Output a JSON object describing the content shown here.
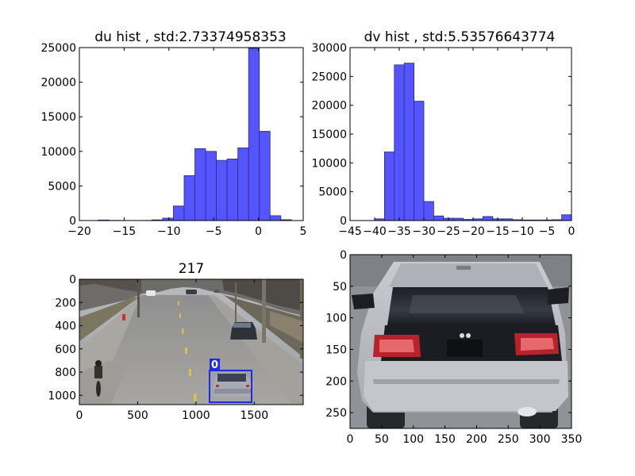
{
  "chart_data": [
    {
      "type": "bar",
      "title": "du hist , std:2.73374958353",
      "xlim": [
        -20,
        5
      ],
      "ylim": [
        0,
        25000
      ],
      "xticks": [
        "−20",
        "−15",
        "−10",
        "−5",
        "0",
        "5"
      ],
      "yticks": [
        "0",
        "5000",
        "10000",
        "15000",
        "20000",
        "25000"
      ],
      "bins": [
        {
          "x0": -19.1,
          "x1": -17.9,
          "value": 0
        },
        {
          "x0": -17.9,
          "x1": -16.7,
          "value": 80
        },
        {
          "x0": -16.7,
          "x1": -15.5,
          "value": 30
        },
        {
          "x0": -15.5,
          "x1": -14.3,
          "value": 20
        },
        {
          "x0": -14.3,
          "x1": -13.1,
          "value": 10
        },
        {
          "x0": -13.1,
          "x1": -11.9,
          "value": 20
        },
        {
          "x0": -11.9,
          "x1": -10.7,
          "value": 100
        },
        {
          "x0": -10.7,
          "x1": -9.5,
          "value": 350
        },
        {
          "x0": -9.5,
          "x1": -8.3,
          "value": 2100
        },
        {
          "x0": -8.3,
          "x1": -7.1,
          "value": 6500
        },
        {
          "x0": -7.1,
          "x1": -5.9,
          "value": 10400
        },
        {
          "x0": -5.9,
          "x1": -4.7,
          "value": 10000
        },
        {
          "x0": -4.7,
          "x1": -3.5,
          "value": 8700
        },
        {
          "x0": -3.5,
          "x1": -2.3,
          "value": 8900
        },
        {
          "x0": -2.3,
          "x1": -1.1,
          "value": 10500
        },
        {
          "x0": -1.1,
          "x1": 0.1,
          "value": 24900
        },
        {
          "x0": 0.1,
          "x1": 1.3,
          "value": 12900
        },
        {
          "x0": 1.3,
          "x1": 2.5,
          "value": 700
        },
        {
          "x0": 2.5,
          "x1": 3.7,
          "value": 120
        }
      ]
    },
    {
      "type": "bar",
      "title": "dv hist , std:5.53576643774",
      "xlim": [
        -45,
        0
      ],
      "ylim": [
        0,
        30000
      ],
      "xticks": [
        "−45",
        "−40",
        "−35",
        "−30",
        "−25",
        "−20",
        "−15",
        "−10",
        "−5",
        "0"
      ],
      "yticks": [
        "0",
        "5000",
        "10000",
        "15000",
        "20000",
        "25000",
        "30000"
      ],
      "bins": [
        {
          "x0": -40.0,
          "x1": -38.0,
          "value": 300
        },
        {
          "x0": -38.0,
          "x1": -36.0,
          "value": 11900
        },
        {
          "x0": -36.0,
          "x1": -34.0,
          "value": 27000
        },
        {
          "x0": -34.0,
          "x1": -32.0,
          "value": 27300
        },
        {
          "x0": -32.0,
          "x1": -30.0,
          "value": 20700
        },
        {
          "x0": -30.0,
          "x1": -28.0,
          "value": 3300
        },
        {
          "x0": -28.0,
          "x1": -26.0,
          "value": 800
        },
        {
          "x0": -26.0,
          "x1": -24.0,
          "value": 400
        },
        {
          "x0": -24.0,
          "x1": -22.0,
          "value": 400
        },
        {
          "x0": -22.0,
          "x1": -20.0,
          "value": 200
        },
        {
          "x0": -20.0,
          "x1": -18.0,
          "value": 300
        },
        {
          "x0": -18.0,
          "x1": -16.0,
          "value": 700
        },
        {
          "x0": -16.0,
          "x1": -14.0,
          "value": 300
        },
        {
          "x0": -14.0,
          "x1": -12.0,
          "value": 300
        },
        {
          "x0": -12.0,
          "x1": -10.0,
          "value": 150
        },
        {
          "x0": -10.0,
          "x1": -8.0,
          "value": 100
        },
        {
          "x0": -8.0,
          "x1": -6.0,
          "value": 100
        },
        {
          "x0": -6.0,
          "x1": -4.0,
          "value": 100
        },
        {
          "x0": -4.0,
          "x1": -2.0,
          "value": 150
        },
        {
          "x0": -2.0,
          "x1": 0.0,
          "value": 1000
        }
      ]
    },
    {
      "type": "image",
      "title": "217",
      "xlim": [
        0,
        1920
      ],
      "ylim": [
        1080,
        0
      ],
      "xticks": [
        "0",
        "500",
        "1000",
        "1500"
      ],
      "yticks": [
        "0",
        "200",
        "400",
        "600",
        "800",
        "1000"
      ],
      "detections": [
        {
          "label": "0",
          "x0": 1120,
          "y0": 780,
          "x1": 1480,
          "y1": 1065
        }
      ]
    },
    {
      "type": "image",
      "title": "",
      "xlim": [
        0,
        350
      ],
      "ylim": [
        275,
        0
      ],
      "xticks": [
        "0",
        "50",
        "100",
        "150",
        "200",
        "250",
        "300",
        "350"
      ],
      "yticks": [
        "0",
        "50",
        "100",
        "150",
        "200",
        "250"
      ]
    }
  ]
}
